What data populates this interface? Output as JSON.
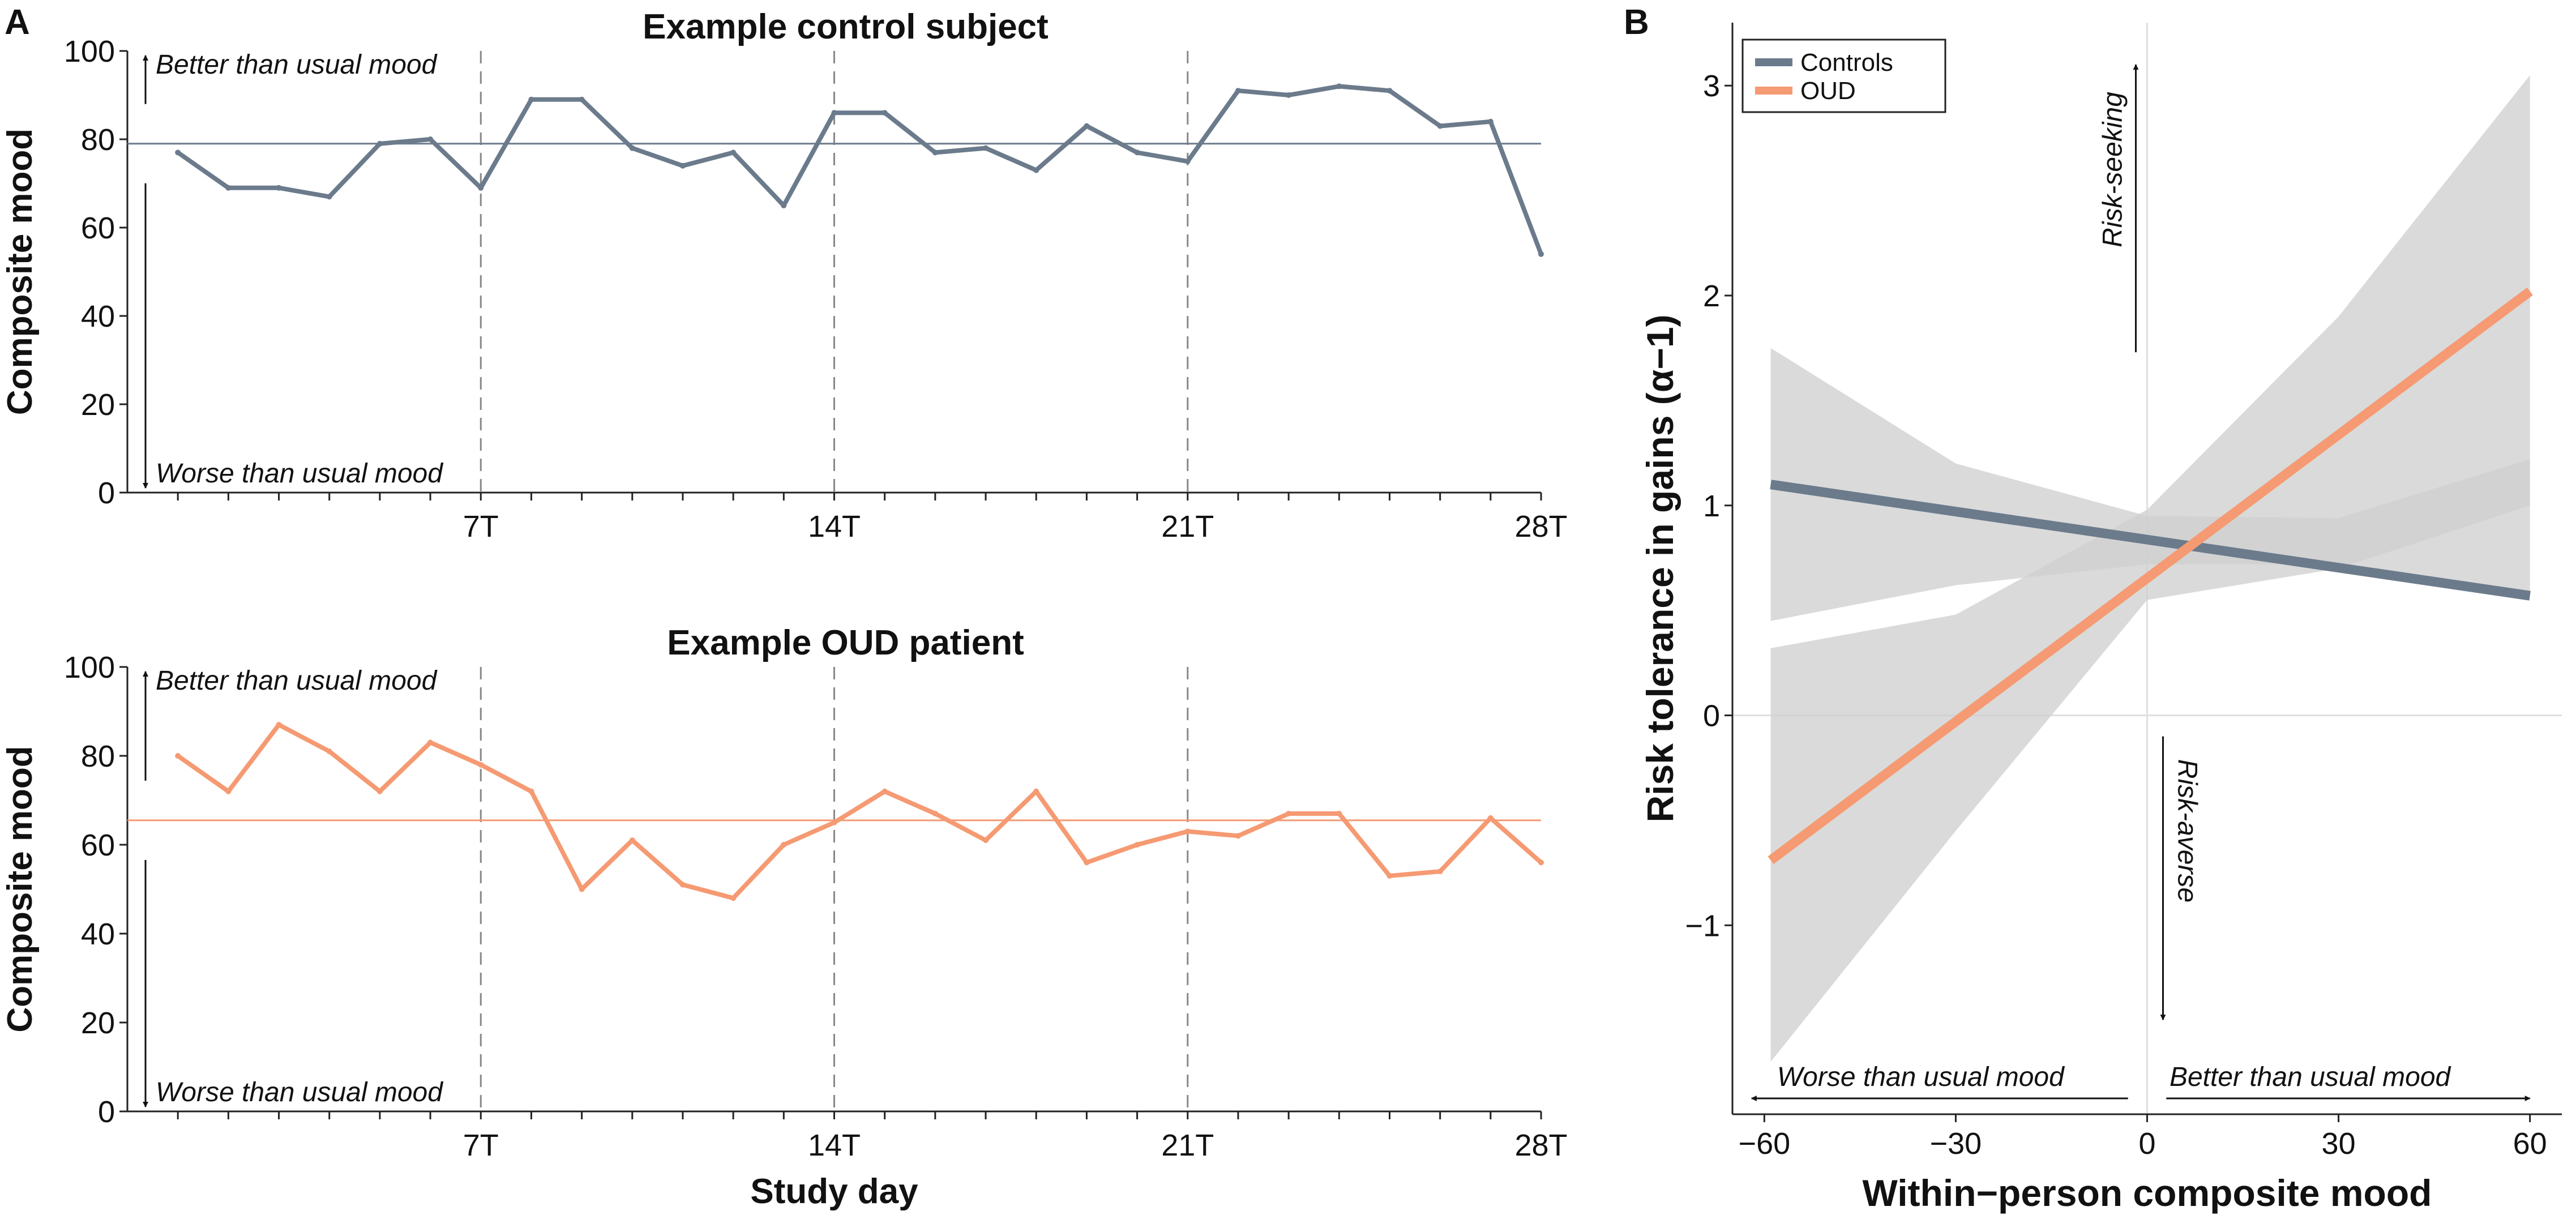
{
  "panel_labels": {
    "a": "A",
    "b": "B"
  },
  "colors": {
    "controls": "#6b7b8c",
    "oud": "#f59a72",
    "band": "#cfcfcf",
    "refline": "#e0e0e0"
  },
  "chart_data": [
    {
      "id": "control",
      "type": "line",
      "title": "Example control subject",
      "xlabel": "",
      "ylabel": "Composite mood",
      "ylim": [
        0,
        100
      ],
      "xlim": [
        0,
        28
      ],
      "yticks": [
        "0",
        "20",
        "40",
        "60",
        "80",
        "100"
      ],
      "xticks": [
        {
          "value": 7,
          "label": "7T"
        },
        {
          "value": 14,
          "label": "14T"
        },
        {
          "value": 21,
          "label": "21T"
        },
        {
          "value": 28,
          "label": "28T"
        }
      ],
      "x": [
        1,
        2,
        3,
        4,
        5,
        6,
        7,
        8,
        9,
        10,
        11,
        12,
        13,
        14,
        15,
        16,
        17,
        18,
        19,
        20,
        21,
        22,
        23,
        24,
        25,
        26,
        27,
        28
      ],
      "values": [
        77,
        69,
        69,
        67,
        79,
        80,
        69,
        89,
        89,
        78,
        74,
        77,
        65,
        86,
        86,
        77,
        78,
        73,
        83,
        77,
        75,
        91,
        90,
        92,
        91,
        83,
        84,
        54
      ],
      "mean": 79,
      "upper_annotation": "Better than usual mood",
      "lower_annotation": "Worse than usual mood"
    },
    {
      "id": "oud",
      "type": "line",
      "title": "Example OUD patient",
      "xlabel": "Study day",
      "ylabel": "Composite mood",
      "ylim": [
        0,
        100
      ],
      "xlim": [
        0,
        28
      ],
      "yticks": [
        "0",
        "20",
        "40",
        "60",
        "80",
        "100"
      ],
      "xticks": [
        {
          "value": 7,
          "label": "7T"
        },
        {
          "value": 14,
          "label": "14T"
        },
        {
          "value": 21,
          "label": "21T"
        },
        {
          "value": 28,
          "label": "28T"
        }
      ],
      "x": [
        1,
        2,
        3,
        4,
        5,
        6,
        7,
        8,
        9,
        10,
        11,
        12,
        13,
        14,
        15,
        16,
        17,
        18,
        19,
        20,
        21,
        22,
        23,
        24,
        25,
        26,
        27,
        28
      ],
      "values": [
        80,
        72,
        87,
        81,
        72,
        83,
        78,
        72,
        50,
        61,
        51,
        48,
        60,
        65,
        72,
        67,
        61,
        72,
        56,
        60,
        63,
        62,
        67,
        67,
        53,
        54,
        66,
        56
      ],
      "mean": 65.5,
      "upper_annotation": "Better than usual mood",
      "lower_annotation": "Worse than usual mood"
    },
    {
      "id": "risk",
      "type": "line",
      "title": "",
      "xlabel": "Within−person composite mood",
      "ylabel": "Risk tolerance in gains (α−1)",
      "xlim": [
        -65,
        65
      ],
      "ylim": [
        -1.9,
        3.3
      ],
      "xticks": [
        {
          "value": -60,
          "label": "−60"
        },
        {
          "value": -30,
          "label": "−30"
        },
        {
          "value": 0,
          "label": "0"
        },
        {
          "value": 30,
          "label": "30"
        },
        {
          "value": 60,
          "label": "60"
        }
      ],
      "yticks": [
        {
          "value": -1,
          "label": "−1"
        },
        {
          "value": 0,
          "label": "0"
        },
        {
          "value": 1,
          "label": "1"
        },
        {
          "value": 2,
          "label": "2"
        },
        {
          "value": 3,
          "label": "3"
        }
      ],
      "series": [
        {
          "name": "Controls",
          "x": [
            -59,
            60
          ],
          "values": [
            1.1,
            0.57
          ],
          "ci_x": [
            -59,
            -30,
            0,
            30,
            60
          ],
          "ci_lower": [
            0.45,
            0.62,
            0.72,
            0.72,
            0.57
          ],
          "ci_upper": [
            1.75,
            1.2,
            0.95,
            0.94,
            1.22
          ]
        },
        {
          "name": "OUD",
          "x": [
            -59,
            60
          ],
          "values": [
            -0.69,
            2.02
          ],
          "ci_x": [
            -59,
            -30,
            0,
            30,
            60
          ],
          "ci_lower": [
            -1.65,
            -0.55,
            0.55,
            0.7,
            1.0
          ],
          "ci_upper": [
            0.32,
            0.48,
            0.98,
            1.9,
            3.05
          ]
        }
      ],
      "legend": [
        "Controls",
        "OUD"
      ],
      "legend_position": "top-left",
      "annotations": {
        "up": "Risk-seeking",
        "down": "Risk-averse",
        "left": "Worse than usual mood",
        "right": "Better than usual mood"
      }
    }
  ]
}
